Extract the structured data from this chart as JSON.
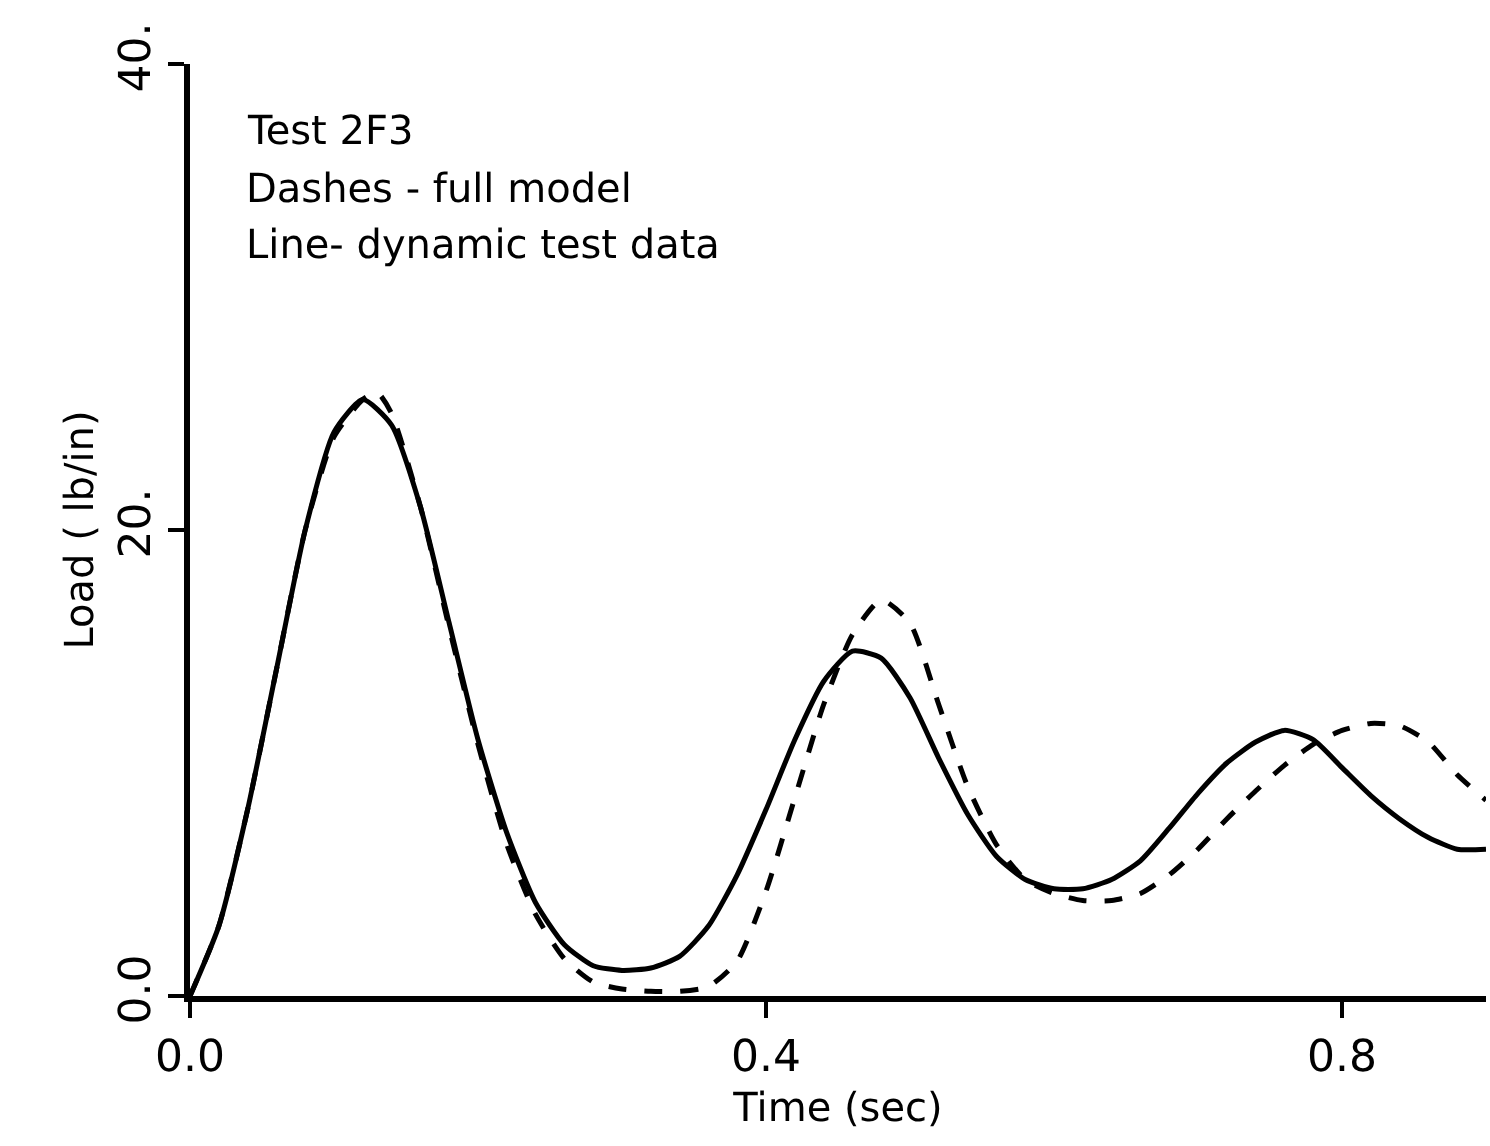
{
  "chart_data": {
    "type": "line",
    "xlabel": "Time (sec)",
    "ylabel": "Load ( lb/in)",
    "annotations": [
      "Test 2F3",
      "Dashes - full model",
      "Line- dynamic test data"
    ],
    "xlim": [
      0,
      0.9
    ],
    "xticks": [
      {
        "value": 0,
        "label": "0.0"
      },
      0.4,
      0.8
    ],
    "ylim": [
      0,
      40
    ],
    "yticks": [
      {
        "value": 0,
        "label": "0.0"
      },
      {
        "value": 20,
        "label": "20."
      },
      {
        "value": 40,
        "label": "40."
      }
    ],
    "series": [
      {
        "color": "#000000",
        "line_style": "solid",
        "x": [
          0,
          0.02,
          0.04,
          0.06,
          0.08,
          0.1,
          0.12,
          0.14,
          0.16,
          0.18,
          0.2,
          0.22,
          0.24,
          0.26,
          0.28,
          0.3,
          0.32,
          0.34,
          0.36,
          0.38,
          0.4,
          0.42,
          0.44,
          0.46,
          0.48,
          0.5,
          0.52,
          0.54,
          0.56,
          0.58,
          0.6,
          0.62,
          0.64,
          0.66,
          0.68,
          0.7,
          0.72,
          0.74,
          0.76,
          0.78,
          0.8,
          0.82,
          0.84,
          0.86,
          0.88,
          0.9
        ],
        "values": [
          0,
          3,
          8,
          14,
          20,
          24.2,
          25.6,
          24.5,
          21,
          16,
          11,
          7,
          4,
          2.2,
          1.3,
          1.1,
          1.2,
          1.7,
          3,
          5.2,
          8,
          11,
          13.5,
          14.8,
          14.5,
          12.8,
          10.2,
          7.8,
          6,
          5,
          4.6,
          4.6,
          5,
          5.8,
          7.2,
          8.7,
          10,
          10.9,
          11.4,
          11,
          9.8,
          8.6,
          7.6,
          6.8,
          6.3,
          6.3
        ]
      },
      {
        "color": "#000000",
        "line_style": "dashed",
        "x": [
          0,
          0.02,
          0.04,
          0.06,
          0.08,
          0.1,
          0.12,
          0.13,
          0.14,
          0.16,
          0.18,
          0.2,
          0.22,
          0.24,
          0.26,
          0.28,
          0.3,
          0.32,
          0.34,
          0.36,
          0.38,
          0.4,
          0.42,
          0.44,
          0.46,
          0.48,
          0.5,
          0.52,
          0.54,
          0.56,
          0.58,
          0.6,
          0.62,
          0.64,
          0.66,
          0.68,
          0.7,
          0.72,
          0.74,
          0.76,
          0.78,
          0.8,
          0.82,
          0.84,
          0.86,
          0.88,
          0.9
        ],
        "values": [
          0,
          3,
          8,
          14,
          20,
          24,
          25.6,
          25.9,
          25,
          21,
          15.8,
          10.8,
          6.5,
          3.5,
          1.6,
          0.6,
          0.3,
          0.2,
          0.2,
          0.4,
          1.5,
          4.5,
          8.5,
          12.5,
          15.5,
          17,
          16,
          12.5,
          9,
          6.5,
          5,
          4.4,
          4.1,
          4.1,
          4.4,
          5.2,
          6.3,
          7.6,
          8.8,
          9.9,
          10.8,
          11.4,
          11.7,
          11.6,
          10.9,
          9.5,
          8.4
        ]
      }
    ]
  }
}
